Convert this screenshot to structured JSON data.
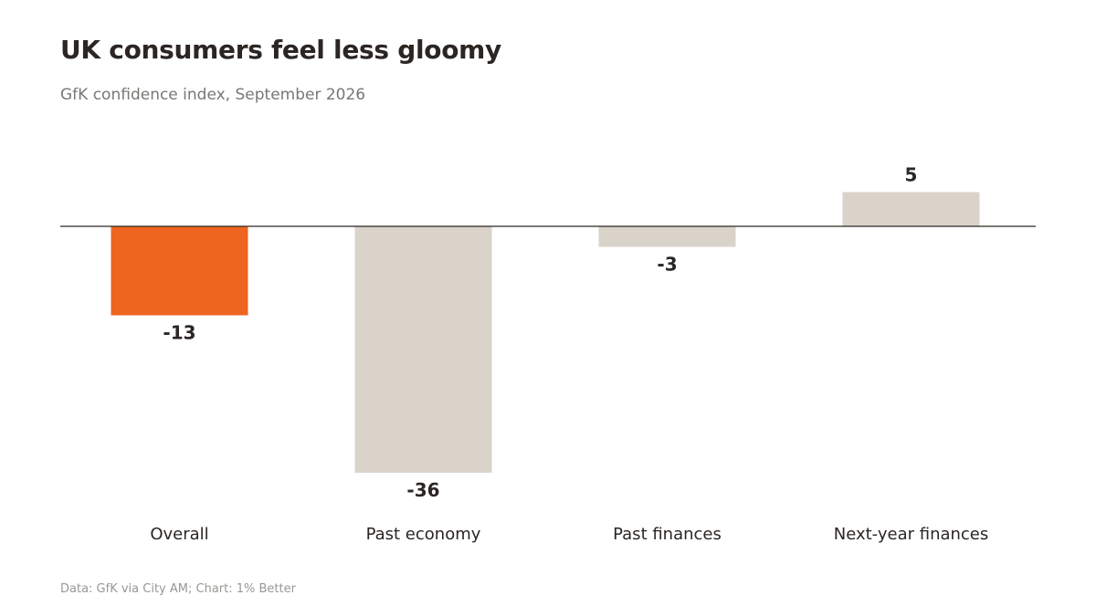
{
  "chart_data": {
    "type": "bar",
    "title": "UK consumers feel less gloomy",
    "subtitle": "GfK confidence index, September 2026",
    "categories": [
      "Overall",
      "Past economy",
      "Past finances",
      "Next-year finances"
    ],
    "values": [
      -13,
      -36,
      -3,
      5
    ],
    "value_labels": [
      "-13",
      "-36",
      "-3",
      "5"
    ],
    "highlight_index": 0,
    "colors": {
      "highlight": "#ee6520",
      "default": "#dad3ca",
      "baseline": "#2b2623"
    },
    "ylim": [
      -36,
      5
    ],
    "grid": false,
    "legend": "none",
    "xlabel": "",
    "ylabel": ""
  },
  "footer": {
    "source": "Data: GfK via City AM; Chart: 1% Better"
  }
}
